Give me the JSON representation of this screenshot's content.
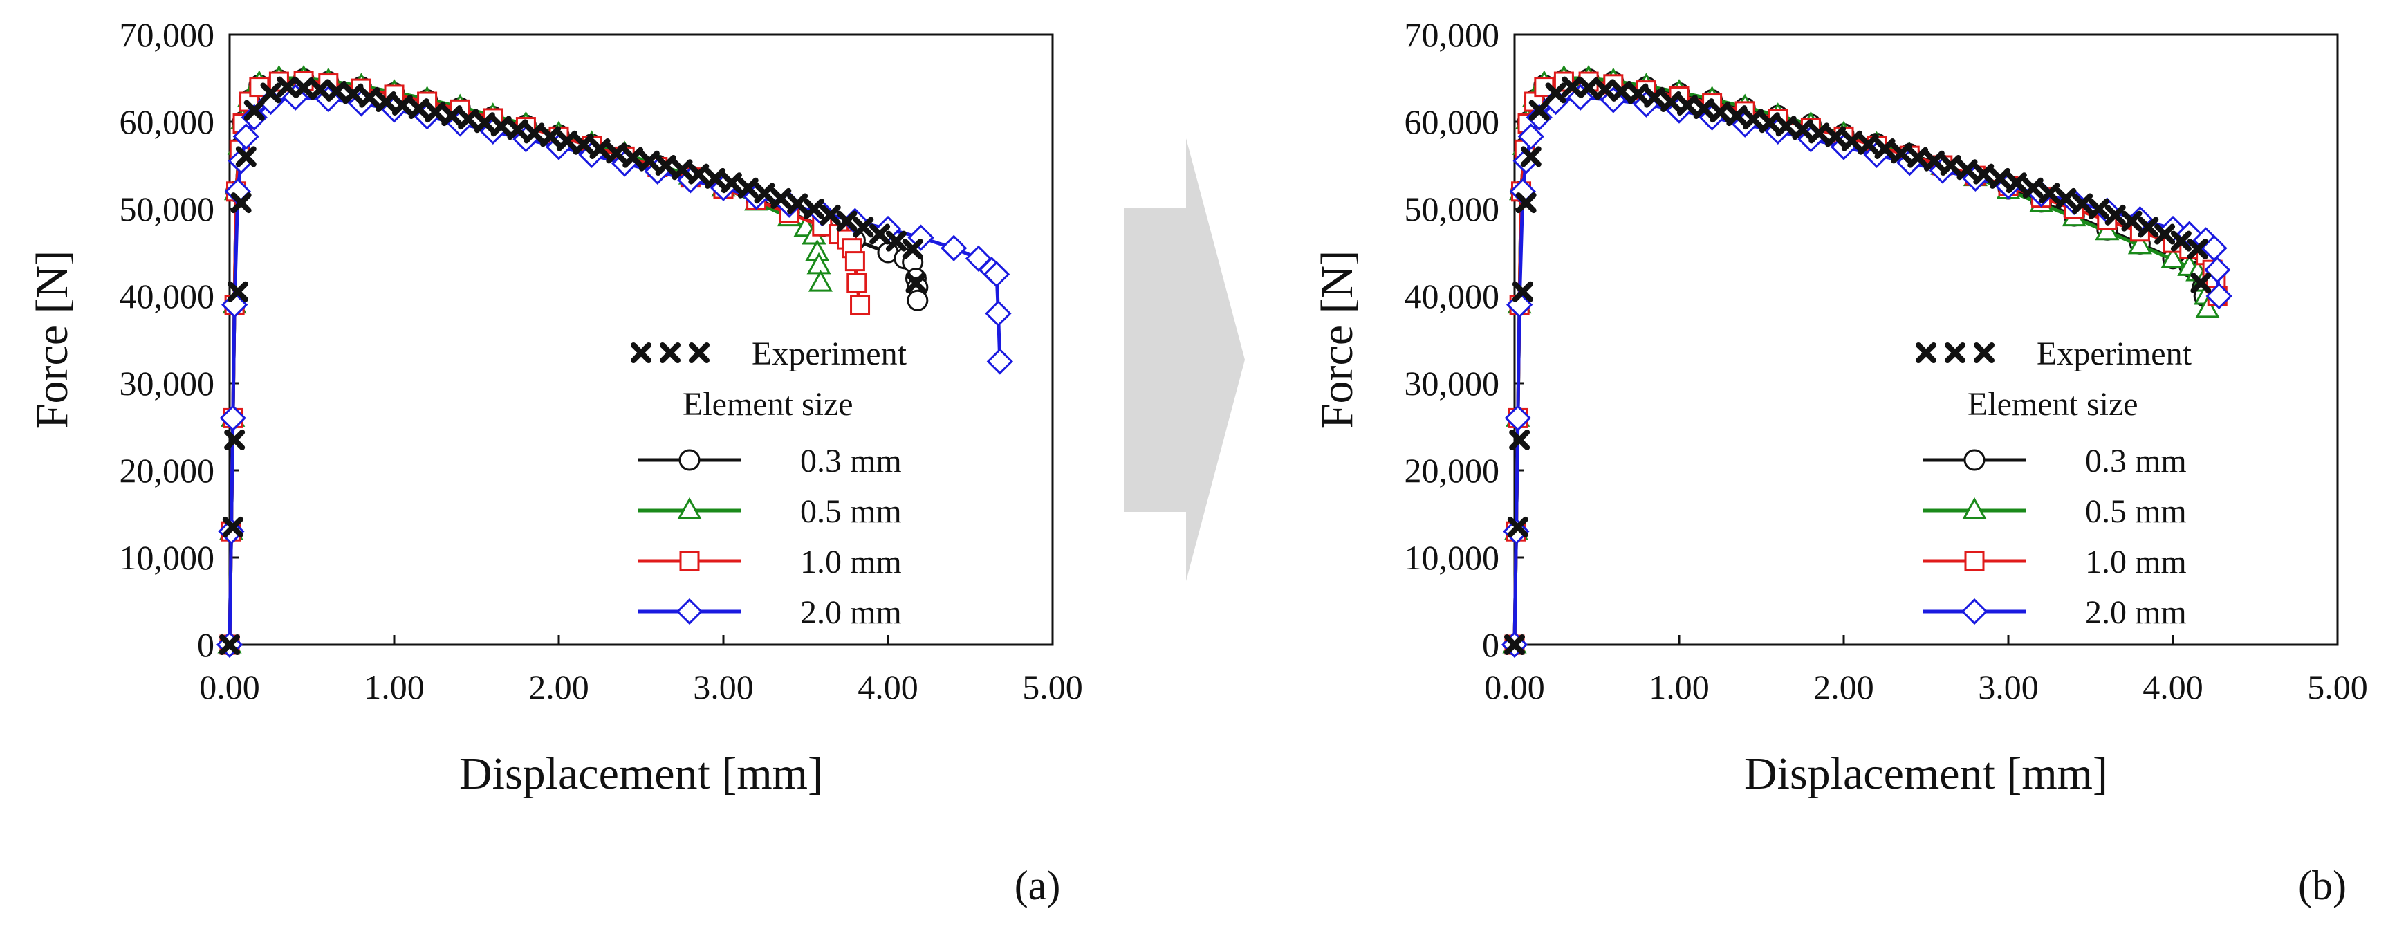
{
  "panel_labels": [
    "(a)",
    "(b)"
  ],
  "arrow_color": "#d9d9d9",
  "chart_data": [
    {
      "type": "line",
      "panel": "a",
      "xlabel": "Displacement [mm]",
      "ylabel": "Force [N]",
      "xlim": [
        0,
        5
      ],
      "ylim": [
        0,
        70000
      ],
      "xticks": [
        0,
        1,
        2,
        3,
        4,
        5
      ],
      "xtick_labels": [
        "0.00",
        "1.00",
        "2.00",
        "3.00",
        "4.00",
        "5.00"
      ],
      "yticks": [
        0,
        10000,
        20000,
        30000,
        40000,
        50000,
        60000,
        70000
      ],
      "ytick_labels": [
        "0",
        "10,000",
        "20,000",
        "30,000",
        "40,000",
        "50,000",
        "60,000",
        "70,000"
      ],
      "legend": {
        "position": "lower-right",
        "experiment_label": "Experiment",
        "group_title": "Element size"
      },
      "series": [
        {
          "name": "Experiment",
          "color": "#111111",
          "marker": "x",
          "line": false,
          "x": [
            0,
            0.02,
            0.03,
            0.05,
            0.07,
            0.1,
            0.15,
            0.25,
            0.35,
            0.45,
            0.55,
            0.65,
            0.75,
            0.85,
            0.95,
            1.05,
            1.15,
            1.25,
            1.35,
            1.45,
            1.55,
            1.65,
            1.75,
            1.85,
            1.95,
            2.05,
            2.15,
            2.25,
            2.35,
            2.45,
            2.55,
            2.65,
            2.75,
            2.85,
            2.95,
            3.05,
            3.15,
            3.25,
            3.35,
            3.45,
            3.55,
            3.65,
            3.75,
            3.85,
            3.95,
            4.05,
            4.15,
            4.17
          ],
          "y": [
            0,
            13500,
            23500,
            40500,
            50700,
            56000,
            61300,
            63300,
            64000,
            63900,
            63700,
            63500,
            63200,
            62800,
            62300,
            61900,
            61500,
            61100,
            60700,
            60300,
            59900,
            59500,
            59100,
            58700,
            58300,
            57800,
            57400,
            56900,
            56400,
            55900,
            55500,
            55000,
            54500,
            54000,
            53500,
            53000,
            52400,
            51800,
            51200,
            50600,
            50000,
            49300,
            48600,
            47900,
            47100,
            46300,
            45400,
            41500
          ]
        },
        {
          "name": "0.3 mm",
          "color": "#111111",
          "marker": "circle",
          "line": true,
          "x": [
            0,
            0.01,
            0.02,
            0.03,
            0.04,
            0.06,
            0.08,
            0.12,
            0.18,
            0.3,
            0.45,
            0.6,
            0.8,
            1.0,
            1.2,
            1.4,
            1.6,
            1.8,
            2.0,
            2.2,
            2.4,
            2.6,
            2.8,
            3.0,
            3.2,
            3.4,
            3.6,
            3.8,
            4.0,
            4.1,
            4.15,
            4.17,
            4.18,
            4.18
          ],
          "y": [
            0,
            13000,
            26000,
            39000,
            52000,
            57000,
            60000,
            62500,
            64200,
            64800,
            64900,
            64600,
            64000,
            63300,
            62500,
            61600,
            60600,
            59600,
            58500,
            57400,
            56200,
            55000,
            53800,
            52500,
            51100,
            49600,
            48000,
            46400,
            45000,
            44300,
            43900,
            42000,
            41000,
            39500
          ]
        },
        {
          "name": "0.5 mm",
          "color": "#1a8a1a",
          "marker": "triangle",
          "line": true,
          "x": [
            0,
            0.01,
            0.02,
            0.03,
            0.04,
            0.06,
            0.08,
            0.12,
            0.18,
            0.3,
            0.45,
            0.6,
            0.8,
            1.0,
            1.2,
            1.4,
            1.6,
            1.8,
            2.0,
            2.2,
            2.4,
            2.6,
            2.8,
            3.0,
            3.2,
            3.4,
            3.5,
            3.55,
            3.57,
            3.58,
            3.59
          ],
          "y": [
            0,
            13000,
            26000,
            39000,
            52000,
            57200,
            60200,
            62700,
            64400,
            65000,
            65000,
            64700,
            64100,
            63400,
            62600,
            61700,
            60700,
            59700,
            58600,
            57500,
            56300,
            55100,
            53800,
            52400,
            50800,
            49000,
            47800,
            46900,
            45000,
            43500,
            41500
          ]
        },
        {
          "name": "1.0 mm",
          "color": "#e01a1a",
          "marker": "square",
          "line": true,
          "x": [
            0,
            0.01,
            0.02,
            0.03,
            0.04,
            0.06,
            0.08,
            0.12,
            0.18,
            0.3,
            0.45,
            0.6,
            0.8,
            1.0,
            1.2,
            1.4,
            1.6,
            1.8,
            2.0,
            2.2,
            2.4,
            2.6,
            2.8,
            3.0,
            3.2,
            3.4,
            3.6,
            3.7,
            3.75,
            3.78,
            3.8,
            3.81,
            3.83
          ],
          "y": [
            0,
            13000,
            26000,
            39000,
            52000,
            56800,
            59800,
            62300,
            64000,
            64600,
            64700,
            64400,
            63800,
            63100,
            62300,
            61400,
            60400,
            59400,
            58300,
            57200,
            56000,
            54800,
            53600,
            52300,
            51000,
            49500,
            48000,
            47100,
            46500,
            45500,
            44000,
            41500,
            39000
          ]
        },
        {
          "name": "2.0 mm",
          "color": "#1a1ae0",
          "marker": "diamond",
          "line": true,
          "x": [
            0,
            0.01,
            0.02,
            0.03,
            0.05,
            0.07,
            0.1,
            0.15,
            0.25,
            0.4,
            0.6,
            0.8,
            1.0,
            1.2,
            1.4,
            1.6,
            1.8,
            2.0,
            2.2,
            2.4,
            2.6,
            2.8,
            3.0,
            3.2,
            3.4,
            3.6,
            3.8,
            4.0,
            4.2,
            4.4,
            4.55,
            4.63,
            4.66,
            4.67,
            4.68
          ],
          "y": [
            0,
            13000,
            26000,
            39000,
            52000,
            55500,
            58300,
            60500,
            62300,
            62800,
            62600,
            62100,
            61400,
            60600,
            59800,
            58900,
            58000,
            57100,
            56200,
            55200,
            54300,
            53300,
            52400,
            51400,
            50500,
            49500,
            48600,
            47700,
            46700,
            45500,
            44300,
            43000,
            42500,
            38000,
            32500
          ]
        }
      ]
    },
    {
      "type": "line",
      "panel": "b",
      "xlabel": "Displacement [mm]",
      "ylabel": "Force [N]",
      "xlim": [
        0,
        5
      ],
      "ylim": [
        0,
        70000
      ],
      "xticks": [
        0,
        1,
        2,
        3,
        4,
        5
      ],
      "xtick_labels": [
        "0.00",
        "1.00",
        "2.00",
        "3.00",
        "4.00",
        "5.00"
      ],
      "yticks": [
        0,
        10000,
        20000,
        30000,
        40000,
        50000,
        60000,
        70000
      ],
      "ytick_labels": [
        "0",
        "10,000",
        "20,000",
        "30,000",
        "40,000",
        "50,000",
        "60,000",
        "70,000"
      ],
      "legend": {
        "position": "lower-right",
        "experiment_label": "Experiment",
        "group_title": "Element size"
      },
      "series": [
        {
          "name": "Experiment",
          "color": "#111111",
          "marker": "x",
          "line": false,
          "x": [
            0,
            0.02,
            0.03,
            0.05,
            0.07,
            0.1,
            0.15,
            0.25,
            0.35,
            0.45,
            0.55,
            0.65,
            0.75,
            0.85,
            0.95,
            1.05,
            1.15,
            1.25,
            1.35,
            1.45,
            1.55,
            1.65,
            1.75,
            1.85,
            1.95,
            2.05,
            2.15,
            2.25,
            2.35,
            2.45,
            2.55,
            2.65,
            2.75,
            2.85,
            2.95,
            3.05,
            3.15,
            3.25,
            3.35,
            3.45,
            3.55,
            3.65,
            3.75,
            3.85,
            3.95,
            4.05,
            4.15,
            4.17
          ],
          "y": [
            0,
            13500,
            23500,
            40500,
            50700,
            56000,
            61300,
            63300,
            64000,
            63900,
            63700,
            63500,
            63200,
            62800,
            62300,
            61900,
            61500,
            61100,
            60700,
            60300,
            59900,
            59500,
            59100,
            58700,
            58300,
            57800,
            57400,
            56900,
            56400,
            55900,
            55500,
            55000,
            54500,
            54000,
            53500,
            53000,
            52400,
            51800,
            51200,
            50600,
            50000,
            49300,
            48600,
            47900,
            47100,
            46300,
            45400,
            41500
          ]
        },
        {
          "name": "0.3 mm",
          "color": "#111111",
          "marker": "circle",
          "line": true,
          "x": [
            0,
            0.01,
            0.02,
            0.03,
            0.04,
            0.06,
            0.08,
            0.12,
            0.18,
            0.3,
            0.45,
            0.6,
            0.8,
            1.0,
            1.2,
            1.4,
            1.6,
            1.8,
            2.0,
            2.2,
            2.4,
            2.6,
            2.8,
            3.0,
            3.2,
            3.4,
            3.6,
            3.8,
            4.0,
            4.1,
            4.15,
            4.18,
            4.19
          ],
          "y": [
            0,
            13000,
            26000,
            39000,
            52000,
            57000,
            60000,
            62500,
            64200,
            64800,
            64900,
            64600,
            64000,
            63300,
            62500,
            61600,
            60700,
            59700,
            58600,
            57500,
            56300,
            55000,
            53700,
            52300,
            50800,
            49200,
            47600,
            46000,
            44300,
            43400,
            42800,
            41000,
            40000
          ]
        },
        {
          "name": "0.5 mm",
          "color": "#1a8a1a",
          "marker": "triangle",
          "line": true,
          "x": [
            0,
            0.01,
            0.02,
            0.03,
            0.04,
            0.06,
            0.08,
            0.12,
            0.18,
            0.3,
            0.45,
            0.6,
            0.8,
            1.0,
            1.2,
            1.4,
            1.6,
            1.8,
            2.0,
            2.2,
            2.4,
            2.6,
            2.8,
            3.0,
            3.2,
            3.4,
            3.6,
            3.8,
            4.0,
            4.1,
            4.15,
            4.18,
            4.2,
            4.21
          ],
          "y": [
            0,
            13000,
            26000,
            39000,
            52000,
            57200,
            60200,
            62700,
            64400,
            65000,
            65000,
            64700,
            64100,
            63400,
            62600,
            61700,
            60700,
            59700,
            58600,
            57400,
            56200,
            54900,
            53600,
            52100,
            50600,
            49000,
            47400,
            45800,
            44200,
            43300,
            42700,
            41500,
            40000,
            38500
          ]
        },
        {
          "name": "1.0 mm",
          "color": "#e01a1a",
          "marker": "square",
          "line": true,
          "x": [
            0,
            0.01,
            0.02,
            0.03,
            0.04,
            0.06,
            0.08,
            0.12,
            0.18,
            0.3,
            0.45,
            0.6,
            0.8,
            1.0,
            1.2,
            1.4,
            1.6,
            1.8,
            2.0,
            2.2,
            2.4,
            2.6,
            2.8,
            3.0,
            3.2,
            3.4,
            3.6,
            3.8,
            4.0,
            4.1,
            4.2,
            4.24,
            4.26,
            4.27
          ],
          "y": [
            0,
            13000,
            26000,
            39000,
            52000,
            56800,
            59800,
            62300,
            64000,
            64600,
            64600,
            64300,
            63600,
            62900,
            62100,
            61200,
            60300,
            59300,
            58300,
            57200,
            56100,
            55000,
            53800,
            52600,
            51300,
            50000,
            48700,
            47400,
            46100,
            45400,
            44700,
            43000,
            41500,
            40000
          ]
        },
        {
          "name": "2.0 mm",
          "color": "#1a1ae0",
          "marker": "diamond",
          "line": true,
          "x": [
            0,
            0.01,
            0.02,
            0.03,
            0.05,
            0.07,
            0.1,
            0.15,
            0.25,
            0.4,
            0.6,
            0.8,
            1.0,
            1.2,
            1.4,
            1.6,
            1.8,
            2.0,
            2.2,
            2.4,
            2.6,
            2.8,
            3.0,
            3.2,
            3.4,
            3.6,
            3.8,
            4.0,
            4.1,
            4.2,
            4.25,
            4.27,
            4.28
          ],
          "y": [
            0,
            13000,
            26000,
            39000,
            52000,
            55500,
            58300,
            60500,
            62300,
            62800,
            62500,
            62000,
            61300,
            60500,
            59700,
            58900,
            58000,
            57100,
            56200,
            55300,
            54400,
            53500,
            52600,
            51700,
            50800,
            49800,
            48800,
            47700,
            47100,
            46400,
            45500,
            43000,
            40000
          ]
        }
      ]
    }
  ]
}
